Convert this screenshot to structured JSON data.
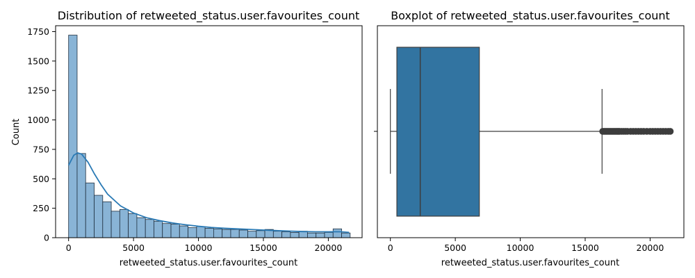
{
  "chart_data": [
    {
      "type": "histogram",
      "title": "Distribution of retweeted_status.user.favourites_count",
      "xlabel": "retweeted_status.user.favourites_count",
      "ylabel": "Count",
      "xlim": [
        -1000,
        22600
      ],
      "ylim": [
        0,
        1800
      ],
      "xticks": [
        0,
        5000,
        10000,
        15000,
        20000
      ],
      "yticks": [
        0,
        250,
        500,
        750,
        1000,
        1250,
        1500,
        1750
      ],
      "bin_width": 657,
      "bin_start": 0,
      "counts": [
        1720,
        715,
        465,
        360,
        305,
        225,
        240,
        205,
        170,
        155,
        140,
        120,
        115,
        100,
        85,
        95,
        80,
        75,
        70,
        70,
        65,
        55,
        60,
        70,
        55,
        50,
        45,
        55,
        40,
        40,
        45,
        75,
        40
      ],
      "kde": {
        "x": [
          0,
          400,
          700,
          1000,
          1500,
          2000,
          2500,
          3000,
          4000,
          5000,
          6000,
          7000,
          8000,
          9000,
          10000,
          11000,
          12000,
          13000,
          14000,
          15000,
          16000,
          17000,
          18000,
          19000,
          20000,
          20500,
          21000,
          21600
        ],
        "y": [
          615,
          700,
          720,
          710,
          640,
          540,
          450,
          370,
          270,
          210,
          170,
          145,
          125,
          110,
          97,
          87,
          80,
          75,
          70,
          65,
          60,
          56,
          52,
          50,
          50,
          51,
          50,
          45
        ]
      },
      "colors": {
        "bar_fill": "#89b4d6",
        "bar_edge": "#1f2f3f",
        "kde": "#2a7ab5"
      },
      "grid": false
    },
    {
      "type": "boxplot",
      "title": "Boxplot of retweeted_status.user.favourites_count",
      "xlabel": "retweeted_status.user.favourites_count",
      "xlim": [
        -1000,
        22600
      ],
      "xticks": [
        0,
        5000,
        10000,
        15000,
        20000
      ],
      "whisker_low": 0,
      "q1": 500,
      "median": 2300,
      "q3": 6850,
      "whisker_high": 16300,
      "outliers": [
        16350,
        16450,
        16550,
        16650,
        16750,
        16850,
        16950,
        17050,
        17150,
        17250,
        17350,
        17450,
        17550,
        17650,
        17800,
        17950,
        18100,
        18250,
        18500,
        18700,
        18900,
        19100,
        19300,
        19500,
        19750,
        20000,
        20200,
        20400,
        20600,
        20800,
        21000,
        21200,
        21400,
        21550
      ],
      "colors": {
        "box_fill": "#3274a1",
        "line": "#3d3d3d",
        "outlier": "#3d3d3d"
      },
      "grid": false
    }
  ]
}
